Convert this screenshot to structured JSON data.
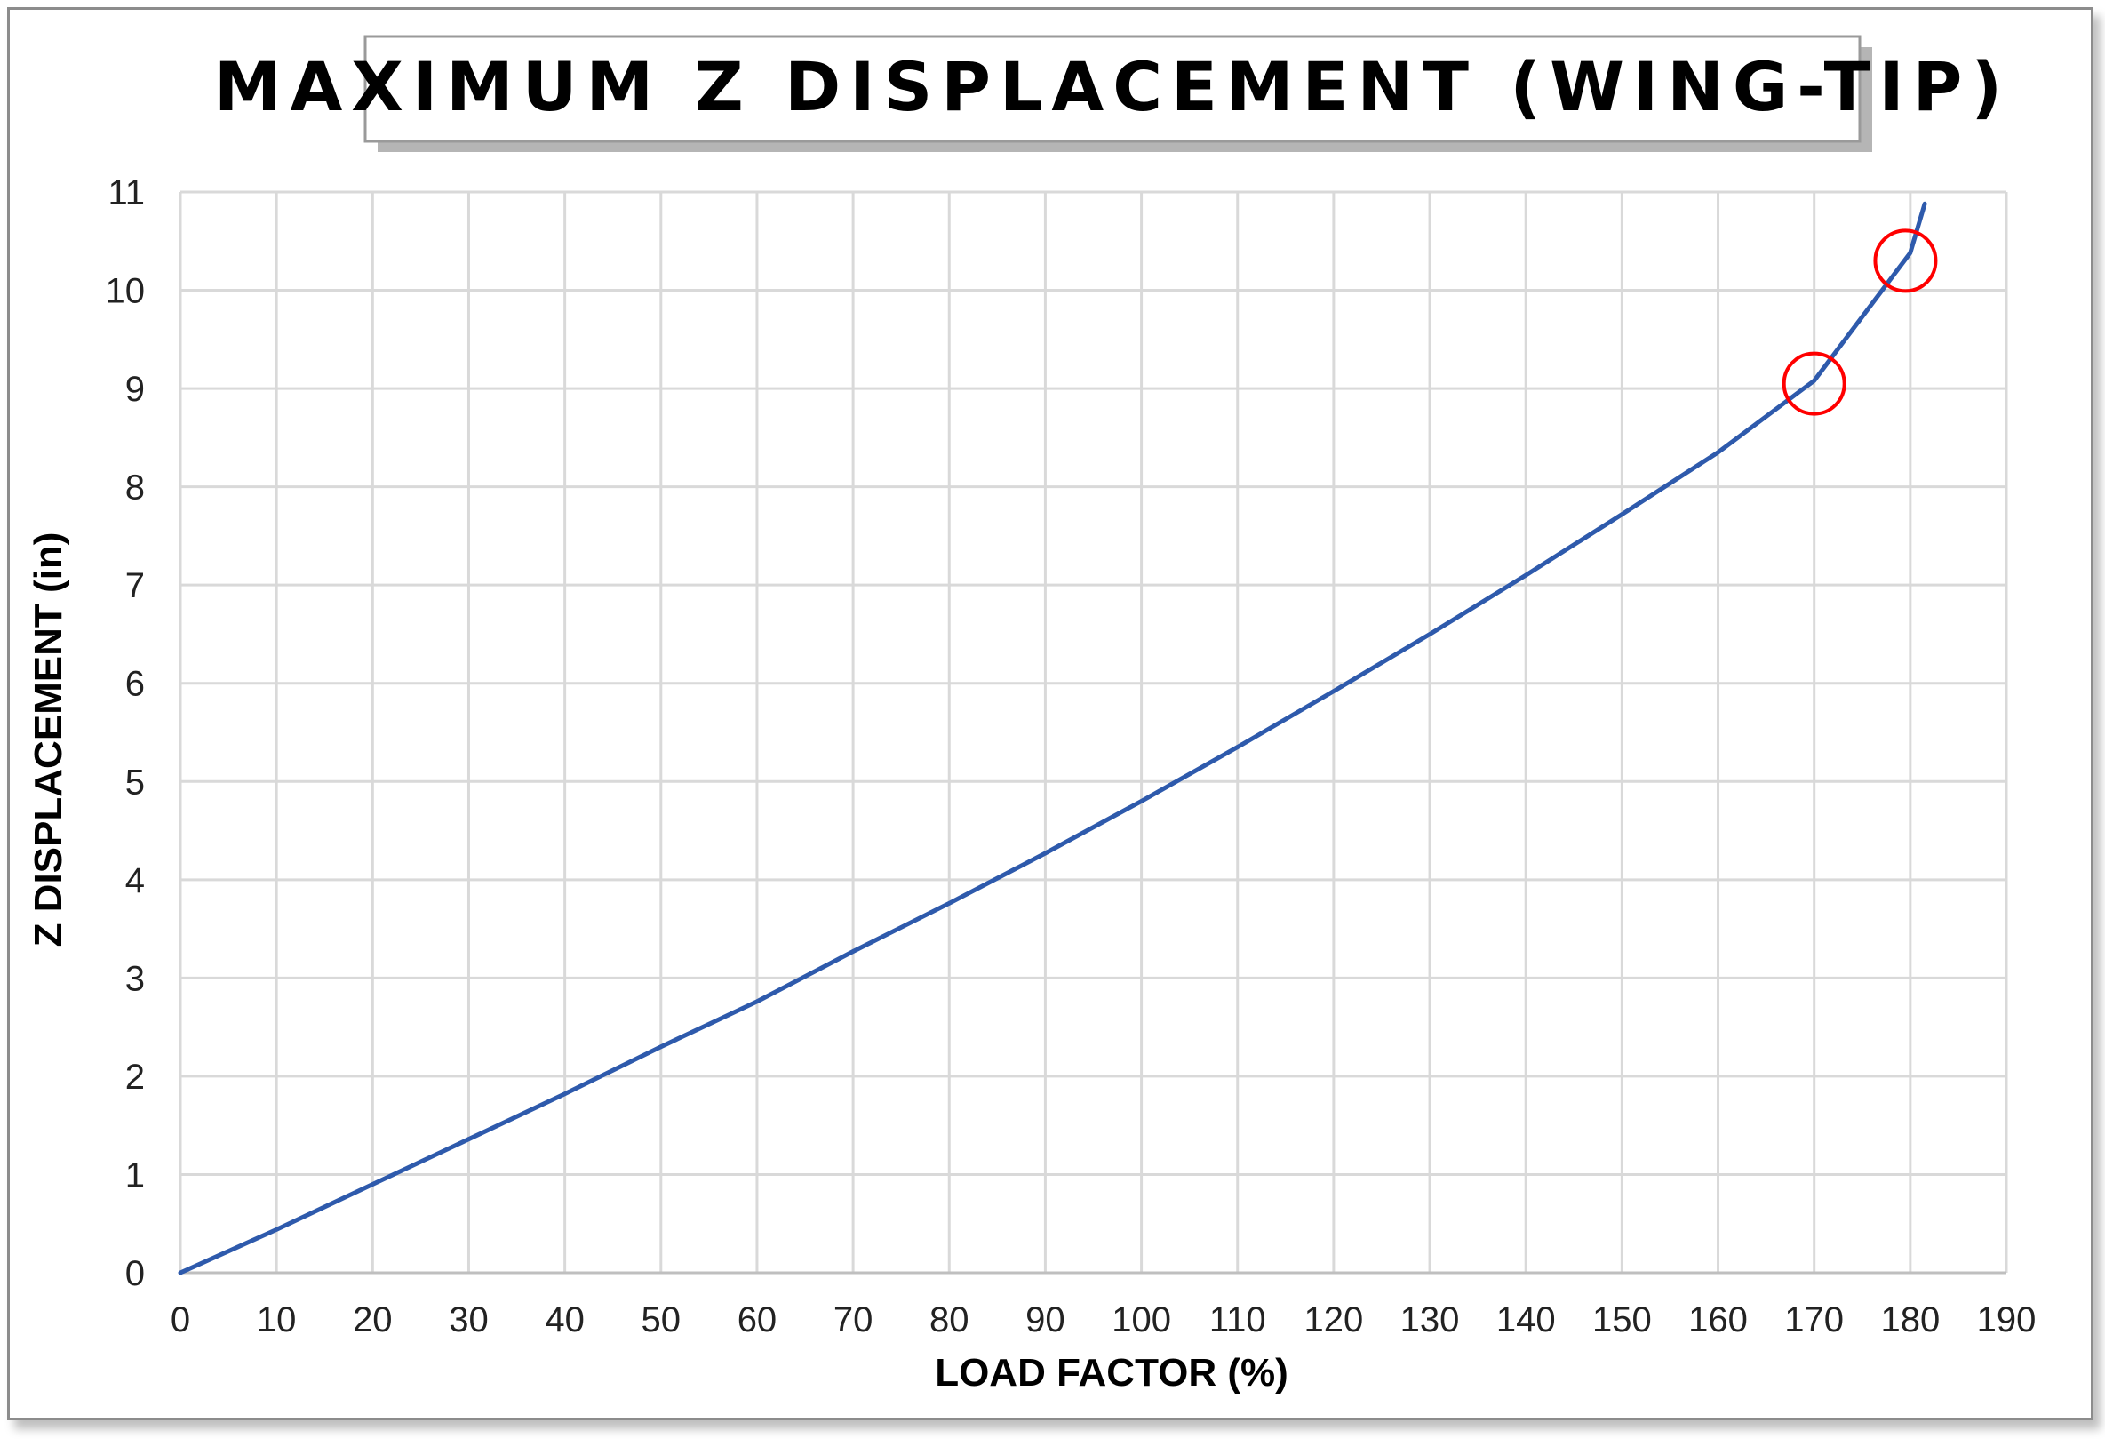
{
  "chart_data": {
    "type": "line",
    "title": "MAXIMUM Z DISPLACEMENT (WING-TIP)",
    "xlabel": "LOAD FACTOR (%)",
    "ylabel": "Z DISPLACEMENT (in)",
    "xlim": [
      0,
      190
    ],
    "ylim": [
      0,
      11
    ],
    "xticks": [
      0,
      10,
      20,
      30,
      40,
      50,
      60,
      70,
      80,
      90,
      100,
      110,
      120,
      130,
      140,
      150,
      160,
      170,
      180,
      190
    ],
    "yticks": [
      0,
      1,
      2,
      3,
      4,
      5,
      6,
      7,
      8,
      9,
      10,
      11
    ],
    "grid": true,
    "series": [
      {
        "color": "#2e5aac",
        "x": [
          0,
          10,
          20,
          30,
          40,
          50,
          60,
          70,
          80,
          90,
          100,
          110,
          120,
          130,
          140,
          150,
          160,
          170,
          180,
          181.5
        ],
        "y": [
          0,
          0.44,
          0.9,
          1.36,
          1.82,
          2.3,
          2.76,
          3.27,
          3.76,
          4.27,
          4.8,
          5.35,
          5.92,
          6.5,
          7.1,
          7.72,
          8.35,
          9.08,
          10.38,
          10.88
        ]
      }
    ],
    "annotations": [
      {
        "type": "circle",
        "x": 170,
        "y": 9.05,
        "color": "#ff0000"
      },
      {
        "type": "circle",
        "x": 179.5,
        "y": 10.3,
        "color": "#ff0000"
      }
    ]
  }
}
